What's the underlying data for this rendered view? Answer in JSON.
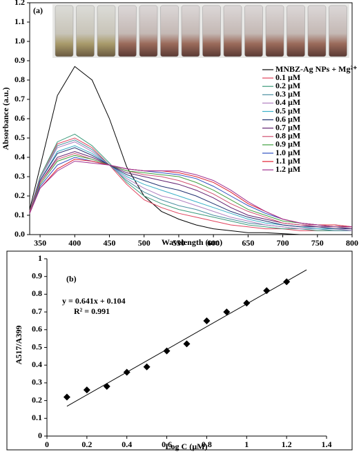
{
  "chart_data": [
    {
      "type": "line",
      "panel_label": "(a)",
      "xlabel": "Wavelength (nm)",
      "ylabel": "Absorbance (a.u.)",
      "xlim": [
        335,
        800
      ],
      "xticks": [
        350,
        400,
        450,
        500,
        550,
        600,
        650,
        700,
        750,
        800
      ],
      "ylim": [
        0,
        1.2
      ],
      "yticks": [
        {
          "value": 0,
          "label": "0.0"
        },
        0.1,
        0.2,
        0.3,
        0.4,
        0.5,
        0.6,
        0.7,
        0.8,
        0.9,
        {
          "value": 1,
          "label": "1.0"
        },
        1.1,
        1.2
      ],
      "x": [
        335,
        350,
        375,
        400,
        425,
        450,
        475,
        500,
        525,
        550,
        575,
        600,
        625,
        650,
        675,
        700,
        725,
        750,
        775,
        800
      ],
      "series": [
        {
          "name": "MNBZ-Ag NPs + Mg²⁺",
          "color": "#000000",
          "values": [
            0.13,
            0.35,
            0.72,
            0.87,
            0.8,
            0.6,
            0.35,
            0.2,
            0.12,
            0.08,
            0.05,
            0.03,
            0.02,
            0.01,
            0.01,
            0.005,
            0,
            0,
            0,
            0
          ]
        },
        {
          "name": "0.1 µM",
          "color": "#e0405a",
          "values": [
            0.12,
            0.3,
            0.47,
            0.5,
            0.45,
            0.36,
            0.26,
            0.18,
            0.14,
            0.11,
            0.09,
            0.07,
            0.05,
            0.04,
            0.03,
            0.03,
            0.02,
            0.02,
            0.02,
            0.02
          ]
        },
        {
          "name": "0.2 µM",
          "color": "#3a9a7a",
          "values": [
            0.12,
            0.3,
            0.48,
            0.52,
            0.46,
            0.37,
            0.27,
            0.2,
            0.16,
            0.13,
            0.11,
            0.09,
            0.07,
            0.05,
            0.04,
            0.03,
            0.03,
            0.02,
            0.02,
            0.02
          ]
        },
        {
          "name": "0.3 µM",
          "color": "#4a8fa0",
          "values": [
            0.12,
            0.29,
            0.46,
            0.49,
            0.44,
            0.36,
            0.28,
            0.22,
            0.18,
            0.15,
            0.13,
            0.1,
            0.08,
            0.06,
            0.05,
            0.04,
            0.03,
            0.03,
            0.02,
            0.02
          ]
        },
        {
          "name": "0.4 µM",
          "color": "#b080c0",
          "values": [
            0.12,
            0.29,
            0.45,
            0.48,
            0.43,
            0.36,
            0.29,
            0.24,
            0.2,
            0.18,
            0.15,
            0.12,
            0.09,
            0.07,
            0.05,
            0.04,
            0.03,
            0.03,
            0.03,
            0.02
          ]
        },
        {
          "name": "0.5 µM",
          "color": "#3ab0c8",
          "values": [
            0.12,
            0.28,
            0.43,
            0.46,
            0.42,
            0.36,
            0.3,
            0.26,
            0.23,
            0.2,
            0.17,
            0.14,
            0.11,
            0.08,
            0.06,
            0.05,
            0.04,
            0.03,
            0.03,
            0.03
          ]
        },
        {
          "name": "0.6 µM",
          "color": "#203070",
          "values": [
            0.12,
            0.28,
            0.42,
            0.45,
            0.41,
            0.36,
            0.31,
            0.28,
            0.25,
            0.23,
            0.2,
            0.16,
            0.12,
            0.09,
            0.07,
            0.05,
            0.04,
            0.04,
            0.03,
            0.03
          ]
        },
        {
          "name": "0.7 µM",
          "color": "#602070",
          "values": [
            0.12,
            0.27,
            0.4,
            0.43,
            0.4,
            0.36,
            0.32,
            0.3,
            0.28,
            0.26,
            0.23,
            0.19,
            0.14,
            0.1,
            0.08,
            0.06,
            0.05,
            0.04,
            0.04,
            0.03
          ]
        },
        {
          "name": "0.8 µM",
          "color": "#d05070",
          "values": [
            0.12,
            0.27,
            0.39,
            0.42,
            0.39,
            0.36,
            0.33,
            0.31,
            0.3,
            0.28,
            0.25,
            0.21,
            0.16,
            0.12,
            0.09,
            0.06,
            0.05,
            0.05,
            0.04,
            0.04
          ]
        },
        {
          "name": "0.9 µM",
          "color": "#40a040",
          "values": [
            0.11,
            0.26,
            0.38,
            0.41,
            0.39,
            0.36,
            0.33,
            0.32,
            0.31,
            0.3,
            0.27,
            0.23,
            0.18,
            0.13,
            0.1,
            0.07,
            0.06,
            0.05,
            0.04,
            0.04
          ]
        },
        {
          "name": "1.0 µM",
          "color": "#3050c0",
          "values": [
            0.11,
            0.25,
            0.36,
            0.4,
            0.38,
            0.36,
            0.34,
            0.33,
            0.32,
            0.31,
            0.29,
            0.25,
            0.2,
            0.15,
            0.11,
            0.08,
            0.06,
            0.05,
            0.05,
            0.04
          ]
        },
        {
          "name": "1.1 µM",
          "color": "#e02030",
          "values": [
            0.11,
            0.24,
            0.34,
            0.39,
            0.38,
            0.36,
            0.34,
            0.33,
            0.33,
            0.32,
            0.3,
            0.27,
            0.22,
            0.16,
            0.12,
            0.08,
            0.06,
            0.05,
            0.05,
            0.04
          ]
        },
        {
          "name": "1.2 µM",
          "color": "#a03090",
          "values": [
            0.11,
            0.24,
            0.33,
            0.38,
            0.37,
            0.36,
            0.34,
            0.33,
            0.33,
            0.33,
            0.31,
            0.28,
            0.23,
            0.17,
            0.12,
            0.08,
            0.06,
            0.05,
            0.04,
            0.04
          ]
        }
      ]
    },
    {
      "type": "scatter",
      "panel_label": "(b)",
      "xlabel": "Log C (µM)",
      "ylabel": "A517/A399",
      "xlim": [
        0,
        1.4
      ],
      "xticks": [
        0,
        0.2,
        0.4,
        0.6,
        0.8,
        1,
        1.2,
        1.4
      ],
      "ylim": [
        0,
        1
      ],
      "yticks": [
        0,
        0.1,
        0.2,
        0.3,
        0.4,
        0.5,
        0.6,
        0.7,
        0.8,
        0.9,
        1
      ],
      "x": [
        0.1,
        0.2,
        0.3,
        0.4,
        0.5,
        0.6,
        0.7,
        0.8,
        0.9,
        1.0,
        1.1,
        1.2
      ],
      "values": [
        0.22,
        0.26,
        0.28,
        0.36,
        0.39,
        0.48,
        0.52,
        0.65,
        0.7,
        0.75,
        0.82,
        0.87
      ],
      "color": "#000000",
      "trendline": {
        "slope": 0.641,
        "intercept": 0.104,
        "x": [
          0.1,
          1.3
        ]
      },
      "annotations": [
        "y = 0.641x + 0.104",
        "R² = 0.991"
      ]
    }
  ]
}
